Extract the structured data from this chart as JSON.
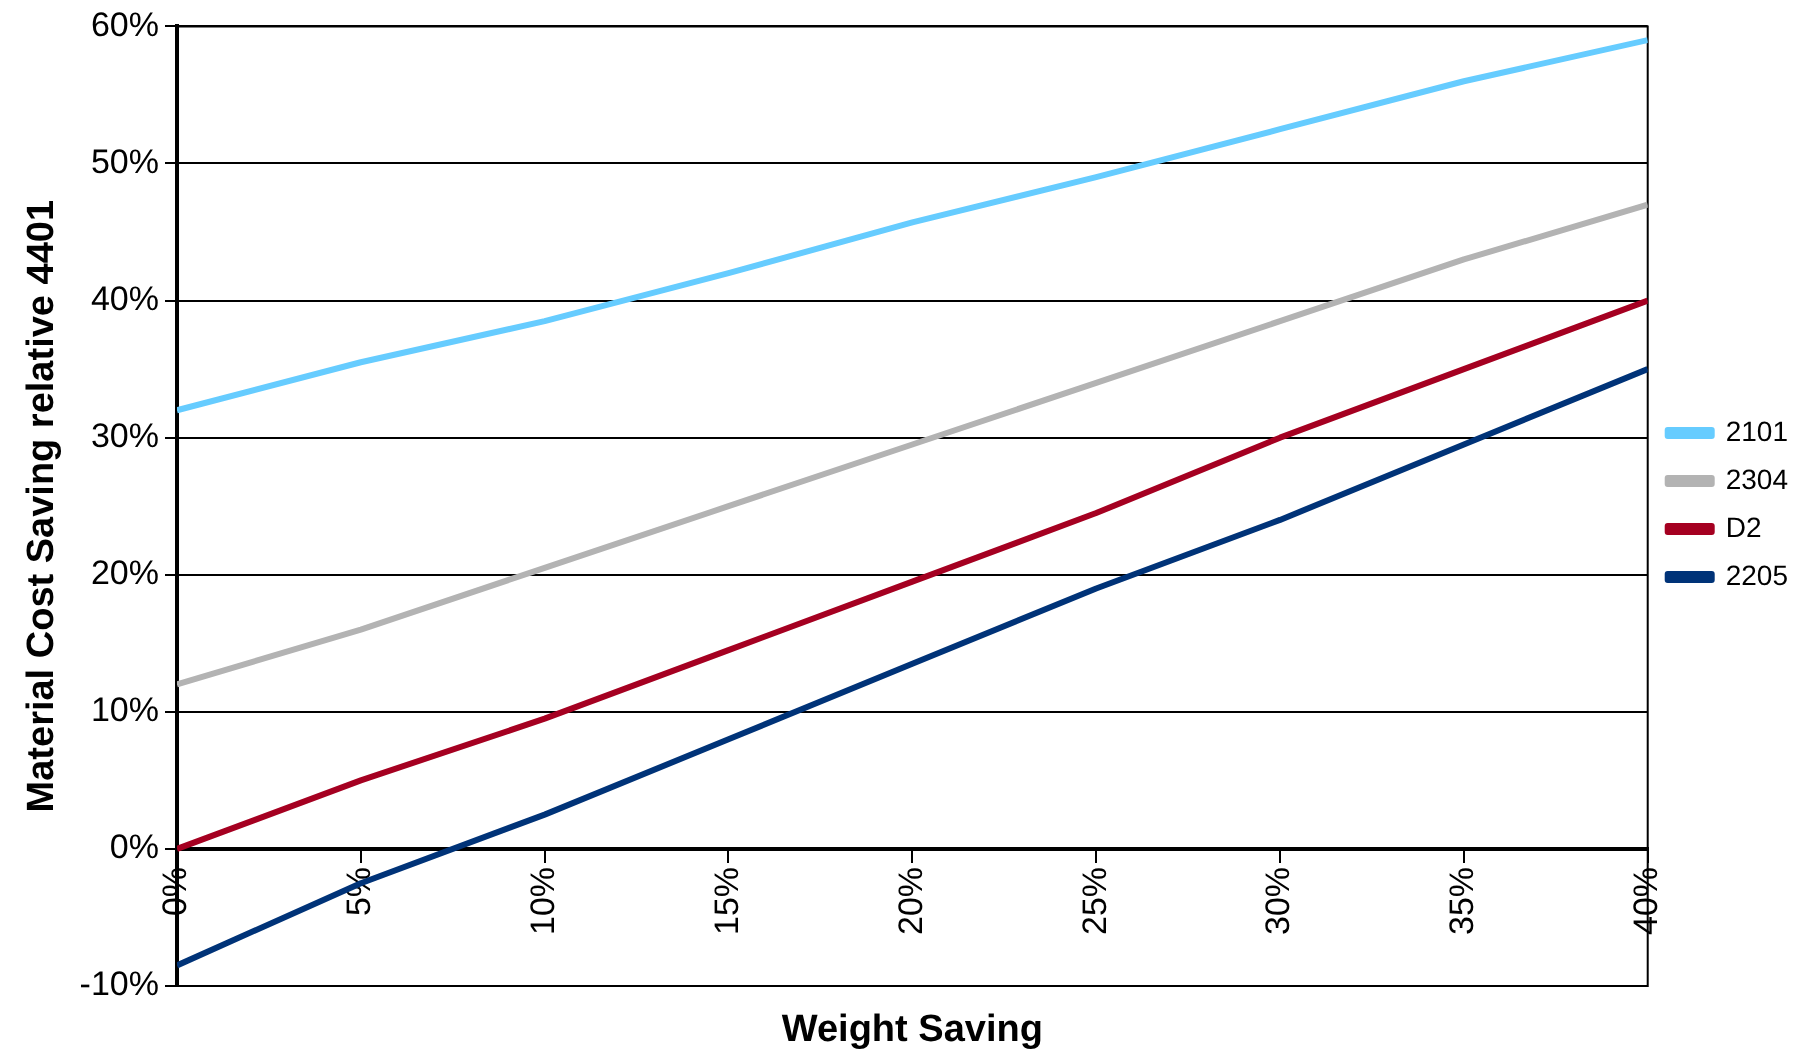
{
  "chart_data": {
    "type": "line",
    "xlabel": "Weight Saving",
    "ylabel": "Material Cost Saving relative 4401",
    "x": [
      0,
      5,
      10,
      15,
      20,
      25,
      30,
      35,
      40
    ],
    "series": [
      {
        "name": "2101",
        "color": "#66ccff",
        "values": [
          32,
          35.5,
          38.5,
          42,
          45.7,
          49,
          52.5,
          56,
          59
        ]
      },
      {
        "name": "2304",
        "color": "#b3b3b3",
        "values": [
          12,
          16,
          20.5,
          25,
          29.5,
          34,
          38.5,
          43,
          47
        ]
      },
      {
        "name": "D2",
        "color": "#a50021",
        "values": [
          0,
          5,
          9.5,
          14.5,
          19.5,
          24.5,
          30,
          35,
          40
        ]
      },
      {
        "name": "2205",
        "color": "#003378",
        "values": [
          -8.5,
          -2.5,
          2.5,
          8,
          13.5,
          19,
          24,
          29.5,
          35
        ]
      }
    ],
    "xlim": [
      0,
      40
    ],
    "xticks": [
      {
        "value": 0,
        "label": "0%"
      },
      {
        "value": 5,
        "label": "5%"
      },
      {
        "value": 10,
        "label": "10%"
      },
      {
        "value": 15,
        "label": "15%"
      },
      {
        "value": 20,
        "label": "20%"
      },
      {
        "value": 25,
        "label": "25%"
      },
      {
        "value": 30,
        "label": "30%"
      },
      {
        "value": 35,
        "label": "35%"
      },
      {
        "value": 40,
        "label": "40%"
      }
    ],
    "ylim": [
      -10,
      60
    ],
    "yticks": [
      {
        "value": -10,
        "label": "-10%"
      },
      {
        "value": 0,
        "label": "0%"
      },
      {
        "value": 10,
        "label": "10%"
      },
      {
        "value": 20,
        "label": "20%"
      },
      {
        "value": 30,
        "label": "30%"
      },
      {
        "value": 40,
        "label": "40%"
      },
      {
        "value": 50,
        "label": "50%"
      },
      {
        "value": 60,
        "label": "60%"
      }
    ],
    "grid": "y",
    "legend": "right",
    "marker": "none",
    "line_style": "solid"
  }
}
